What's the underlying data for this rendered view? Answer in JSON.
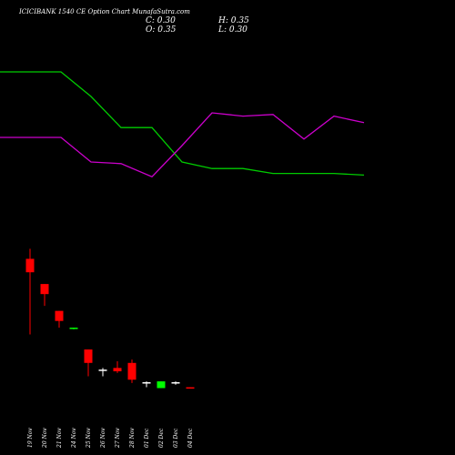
{
  "header": {
    "title": "ICICIBANK 1540  CE Option  Chart MunafaSutra.com",
    "close": "C: 0.30",
    "high": "H: 0.35",
    "open": "O: 0.35",
    "low": "L: 0.30"
  },
  "chart_data": {
    "type": "candlestick",
    "title": "ICICIBANK 1540  CE Option  Chart MunafaSutra.com",
    "categories": [
      "19 Nov",
      "20 Nov",
      "21 Nov",
      "24 Nov",
      "25 Nov",
      "26 Nov",
      "27 Nov",
      "28 Nov",
      "01 Dec",
      "02 Dec",
      "03 Dec",
      "04 Dec"
    ],
    "candles": [
      {
        "open": 8.0,
        "high": 8.6,
        "low": 3.5,
        "close": 7.2,
        "color": "red"
      },
      {
        "open": 6.5,
        "high": 6.5,
        "low": 5.2,
        "close": 5.9,
        "color": "red"
      },
      {
        "open": 4.9,
        "high": 4.9,
        "low": 3.9,
        "close": 4.3,
        "color": "red"
      },
      {
        "open": 3.9,
        "high": 3.9,
        "low": 3.8,
        "close": 3.85,
        "color": "green"
      },
      {
        "open": 2.6,
        "high": 2.6,
        "low": 1.0,
        "close": 1.8,
        "color": "red"
      },
      {
        "open": 1.4,
        "high": 1.5,
        "low": 1.0,
        "close": 1.35,
        "color": "white"
      },
      {
        "open": 1.5,
        "high": 1.9,
        "low": 1.2,
        "close": 1.3,
        "color": "red"
      },
      {
        "open": 1.8,
        "high": 2.0,
        "low": 0.6,
        "close": 0.8,
        "color": "red"
      },
      {
        "open": 0.65,
        "high": 0.7,
        "low": 0.35,
        "close": 0.65,
        "color": "white"
      },
      {
        "open": 0.3,
        "high": 0.7,
        "low": 0.3,
        "close": 0.7,
        "color": "green"
      },
      {
        "open": 0.65,
        "high": 0.7,
        "low": 0.5,
        "close": 0.65,
        "color": "white"
      },
      {
        "open": 0.35,
        "high": 0.35,
        "low": 0.3,
        "close": 0.3,
        "color": "red"
      }
    ],
    "series": [
      {
        "values": [
          95,
          95,
          80,
          61,
          61,
          40,
          36,
          36,
          33,
          33,
          33,
          32
        ],
        "color": "#00cc00"
      },
      {
        "values": [
          55,
          55,
          40,
          39,
          31,
          50,
          70,
          68,
          69,
          54,
          68,
          64
        ],
        "color": "#cc00cc"
      }
    ],
    "colors": {
      "red": "#ff0000",
      "green": "#00ff00",
      "white": "#ffffff",
      "background": "#000000"
    }
  }
}
